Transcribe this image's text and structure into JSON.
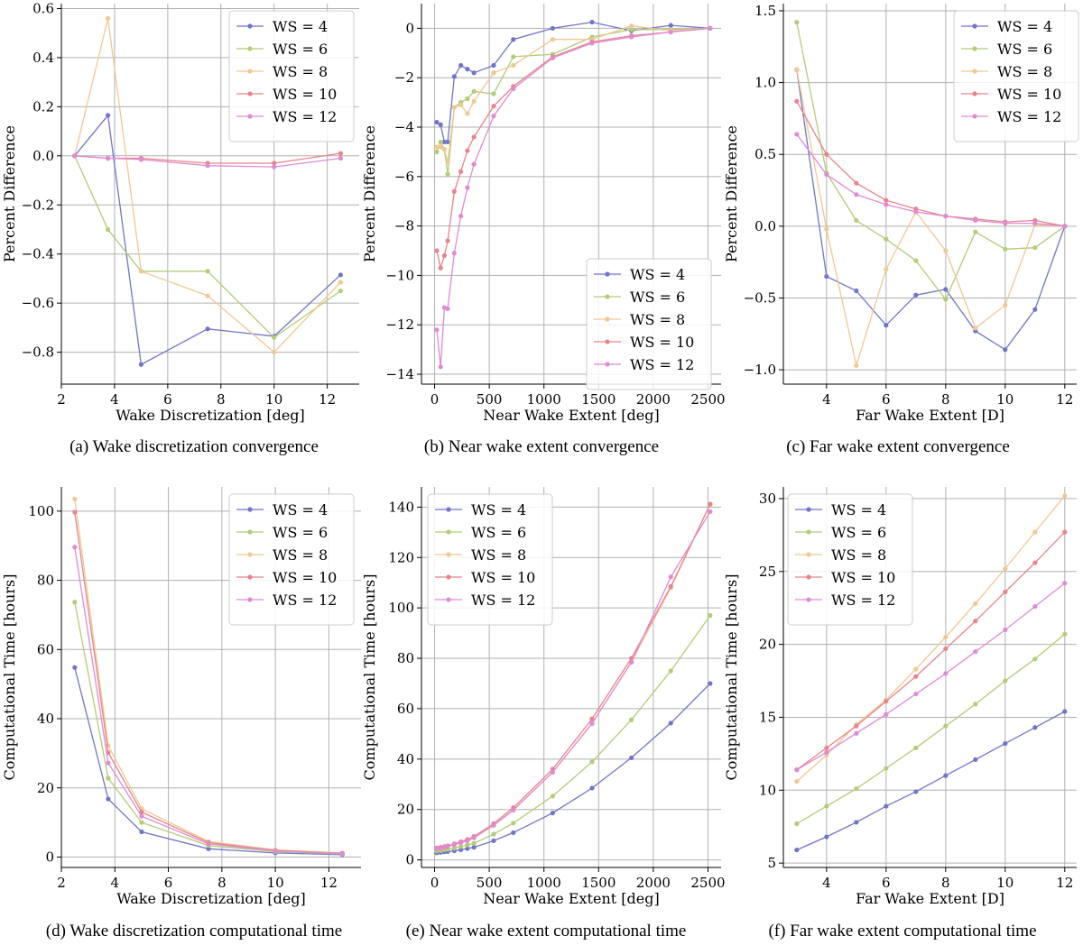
{
  "colors": {
    "WS = 4": "#7075c9",
    "WS = 6": "#b2cc78",
    "WS = 8": "#f0c892",
    "WS = 10": "#e8848b",
    "WS = 12": "#e08ad6",
    "grid": "#b0b0b0"
  },
  "captions": [
    "(a)  Wake discretization convergence",
    "(b)  Near wake extent convergence",
    "(c)  Far wake extent convergence",
    "(d)  Wake discretization computational time",
    "(e)  Near wake extent computational time",
    "(f)  Far wake extent computational time"
  ],
  "chart_data": [
    {
      "id": "a",
      "type": "line",
      "xlabel": "Wake Discretization [deg]",
      "ylabel": "Percent Difference",
      "xlim": [
        2,
        13.2
      ],
      "ylim": [
        -0.93,
        0.62
      ],
      "xticks": [
        2,
        4,
        6,
        8,
        10,
        12
      ],
      "xtick_labels": [
        "2",
        "4",
        "6",
        "8",
        "10",
        "12"
      ],
      "yticks": [
        -0.8,
        -0.6,
        -0.4,
        -0.2,
        0.0,
        0.2,
        0.4,
        0.6
      ],
      "ytick_labels": [
        "−0.8",
        "−0.6",
        "−0.4",
        "−0.2",
        "0.0",
        "0.2",
        "0.4",
        "0.6"
      ],
      "grid": true,
      "legend": "top-right",
      "series": [
        {
          "name": "WS = 4",
          "x": [
            2.5,
            3.75,
            5,
            7.5,
            10,
            12.5
          ],
          "y": [
            0.0,
            0.165,
            -0.85,
            -0.705,
            -0.735,
            -0.485
          ]
        },
        {
          "name": "WS = 6",
          "x": [
            2.5,
            3.75,
            5,
            7.5,
            10,
            12.5
          ],
          "y": [
            0.0,
            -0.3,
            -0.47,
            -0.47,
            -0.74,
            -0.55
          ]
        },
        {
          "name": "WS = 8",
          "x": [
            2.5,
            3.75,
            5,
            7.5,
            10,
            12.5
          ],
          "y": [
            0.0,
            0.56,
            -0.47,
            -0.57,
            -0.8,
            -0.515
          ]
        },
        {
          "name": "WS = 10",
          "x": [
            2.5,
            3.75,
            5,
            7.5,
            10,
            12.5
          ],
          "y": [
            0.0,
            -0.01,
            -0.01,
            -0.03,
            -0.03,
            0.01
          ]
        },
        {
          "name": "WS = 12",
          "x": [
            2.5,
            3.75,
            5,
            7.5,
            10,
            12.5
          ],
          "y": [
            0.0,
            -0.01,
            -0.015,
            -0.04,
            -0.045,
            -0.01
          ]
        }
      ]
    },
    {
      "id": "b",
      "type": "line",
      "xlabel": "Near Wake Extent [deg]",
      "ylabel": "Percent Difference",
      "xlim": [
        -120,
        2620
      ],
      "ylim": [
        -14.4,
        1.0
      ],
      "xticks": [
        0,
        500,
        1000,
        1500,
        2000,
        2500
      ],
      "xtick_labels": [
        "0",
        "500",
        "1000",
        "1500",
        "2000",
        "2500"
      ],
      "yticks": [
        -14,
        -12,
        -10,
        -8,
        -6,
        -4,
        -2,
        0
      ],
      "ytick_labels": [
        "−14",
        "−12",
        "−10",
        "−8",
        "−6",
        "−4",
        "−2",
        "0"
      ],
      "grid": true,
      "legend": "bottom-right",
      "series": [
        {
          "name": "WS = 4",
          "x": [
            20,
            55,
            90,
            120,
            180,
            240,
            300,
            360,
            540,
            720,
            1080,
            1440,
            1800,
            2160,
            2520
          ],
          "y": [
            -3.8,
            -3.9,
            -4.6,
            -4.6,
            -1.95,
            -1.5,
            -1.65,
            -1.8,
            -1.5,
            -0.45,
            0.0,
            0.25,
            -0.1,
            0.12,
            0.0
          ]
        },
        {
          "name": "WS = 6",
          "x": [
            20,
            55,
            90,
            120,
            180,
            240,
            300,
            360,
            540,
            720,
            1080,
            1440,
            1800,
            2160,
            2520
          ],
          "y": [
            -5.0,
            -4.6,
            -4.9,
            -5.9,
            -3.2,
            -3.0,
            -2.85,
            -2.55,
            -2.65,
            -1.15,
            -1.05,
            -0.35,
            -0.05,
            -0.05,
            0.0
          ]
        },
        {
          "name": "WS = 8",
          "x": [
            20,
            55,
            90,
            120,
            180,
            240,
            300,
            360,
            540,
            720,
            1080,
            1440,
            1800,
            2160,
            2520
          ],
          "y": [
            -4.8,
            -4.8,
            -4.9,
            -5.4,
            -3.2,
            -3.1,
            -3.45,
            -2.95,
            -1.8,
            -1.5,
            -0.45,
            -0.45,
            0.1,
            -0.1,
            0.0
          ]
        },
        {
          "name": "WS = 10",
          "x": [
            20,
            55,
            90,
            120,
            180,
            240,
            300,
            360,
            540,
            720,
            1080,
            1440,
            1800,
            2160,
            2520
          ],
          "y": [
            -9.0,
            -9.7,
            -9.2,
            -8.6,
            -6.6,
            -5.8,
            -4.95,
            -4.4,
            -3.15,
            -2.35,
            -1.15,
            -0.55,
            -0.3,
            -0.15,
            0.0
          ]
        },
        {
          "name": "WS = 12",
          "x": [
            20,
            55,
            90,
            120,
            180,
            240,
            300,
            360,
            540,
            720,
            1080,
            1440,
            1800,
            2160,
            2520
          ],
          "y": [
            -12.2,
            -13.7,
            -11.3,
            -11.35,
            -9.1,
            -7.6,
            -6.45,
            -5.5,
            -3.55,
            -2.45,
            -1.2,
            -0.6,
            -0.35,
            -0.15,
            0.0
          ]
        }
      ]
    },
    {
      "id": "c",
      "type": "line",
      "xlabel": "Far Wake Extent [D]",
      "ylabel": "Percent Difference",
      "xlim": [
        2.55,
        12.4
      ],
      "ylim": [
        -1.1,
        1.55
      ],
      "xticks": [
        4,
        6,
        8,
        10,
        12
      ],
      "xtick_labels": [
        "4",
        "6",
        "8",
        "10",
        "12"
      ],
      "yticks": [
        -1.0,
        -0.5,
        0.0,
        0.5,
        1.0,
        1.5
      ],
      "ytick_labels": [
        "−1.0",
        "−0.5",
        "0.0",
        "0.5",
        "1.0",
        "1.5"
      ],
      "grid": true,
      "legend": "top-right",
      "series": [
        {
          "name": "WS = 4",
          "x": [
            3,
            4,
            5,
            6,
            7,
            8,
            9,
            10,
            11,
            12
          ],
          "y": [
            1.09,
            -0.35,
            -0.45,
            -0.69,
            -0.48,
            -0.44,
            -0.73,
            -0.86,
            -0.58,
            0.0
          ]
        },
        {
          "name": "WS = 6",
          "x": [
            3,
            4,
            5,
            6,
            7,
            8,
            9,
            10,
            11,
            12
          ],
          "y": [
            1.42,
            0.37,
            0.04,
            -0.09,
            -0.24,
            -0.51,
            -0.04,
            -0.16,
            -0.15,
            0.0
          ]
        },
        {
          "name": "WS = 8",
          "x": [
            3,
            4,
            5,
            6,
            7,
            8,
            9,
            10,
            11,
            12
          ],
          "y": [
            1.09,
            -0.02,
            -0.97,
            -0.3,
            0.1,
            -0.17,
            -0.71,
            -0.55,
            0.01,
            0.0
          ]
        },
        {
          "name": "WS = 10",
          "x": [
            3,
            4,
            5,
            6,
            7,
            8,
            9,
            10,
            11,
            12
          ],
          "y": [
            0.87,
            0.5,
            0.3,
            0.18,
            0.12,
            0.07,
            0.05,
            0.03,
            0.04,
            0.0
          ]
        },
        {
          "name": "WS = 12",
          "x": [
            3,
            4,
            5,
            6,
            7,
            8,
            9,
            10,
            11,
            12
          ],
          "y": [
            0.64,
            0.36,
            0.22,
            0.15,
            0.1,
            0.07,
            0.04,
            0.02,
            0.02,
            0.0
          ]
        }
      ]
    },
    {
      "id": "d",
      "type": "line",
      "xlabel": "Wake Discretization [deg]",
      "ylabel": "Computational Time [hours]",
      "xlim": [
        2,
        13.2
      ],
      "ylim": [
        -3,
        107
      ],
      "xticks": [
        2,
        4,
        6,
        8,
        10,
        12
      ],
      "xtick_labels": [
        "2",
        "4",
        "6",
        "8",
        "10",
        "12"
      ],
      "yticks": [
        0,
        20,
        40,
        60,
        80,
        100
      ],
      "ytick_labels": [
        "0",
        "20",
        "40",
        "60",
        "80",
        "100"
      ],
      "grid": true,
      "legend": "top-right",
      "series": [
        {
          "name": "WS = 4",
          "x": [
            2.5,
            3.75,
            5,
            7.5,
            10,
            12.5
          ],
          "y": [
            54.8,
            16.8,
            7.3,
            2.4,
            1.2,
            0.7
          ]
        },
        {
          "name": "WS = 6",
          "x": [
            2.5,
            3.75,
            5,
            7.5,
            10,
            12.5
          ],
          "y": [
            73.7,
            22.8,
            10.0,
            3.3,
            1.6,
            0.9
          ]
        },
        {
          "name": "WS = 8",
          "x": [
            2.5,
            3.75,
            5,
            7.5,
            10,
            12.5
          ],
          "y": [
            103.5,
            32.3,
            14.0,
            4.5,
            2.1,
            1.2
          ]
        },
        {
          "name": "WS = 10",
          "x": [
            2.5,
            3.75,
            5,
            7.5,
            10,
            12.5
          ],
          "y": [
            99.7,
            30.2,
            13.0,
            4.2,
            1.9,
            1.1
          ]
        },
        {
          "name": "WS = 12",
          "x": [
            2.5,
            3.75,
            5,
            7.5,
            10,
            12.5
          ],
          "y": [
            89.6,
            27.2,
            11.8,
            3.8,
            1.8,
            1.0
          ]
        }
      ]
    },
    {
      "id": "e",
      "type": "line",
      "xlabel": "Near Wake Extent [deg]",
      "ylabel": "Computational Time [hours]",
      "xlim": [
        -120,
        2620
      ],
      "ylim": [
        -3,
        148
      ],
      "xticks": [
        0,
        500,
        1000,
        1500,
        2000,
        2500
      ],
      "xtick_labels": [
        "0",
        "500",
        "1000",
        "1500",
        "2000",
        "2500"
      ],
      "yticks": [
        0,
        20,
        40,
        60,
        80,
        100,
        120,
        140
      ],
      "ytick_labels": [
        "0",
        "20",
        "40",
        "60",
        "80",
        "100",
        "120",
        "140"
      ],
      "grid": true,
      "legend": "top-left",
      "series": [
        {
          "name": "WS = 4",
          "x": [
            20,
            55,
            90,
            120,
            180,
            240,
            300,
            360,
            540,
            720,
            1080,
            1440,
            1800,
            2160,
            2520
          ],
          "y": [
            2.8,
            3.0,
            3.2,
            3.3,
            3.6,
            4.0,
            4.5,
            5.0,
            7.6,
            10.8,
            18.6,
            28.5,
            40.5,
            54.3,
            70.0
          ]
        },
        {
          "name": "WS = 6",
          "x": [
            20,
            55,
            90,
            120,
            180,
            240,
            300,
            360,
            540,
            720,
            1080,
            1440,
            1800,
            2160,
            2520
          ],
          "y": [
            3.5,
            3.7,
            4.0,
            4.2,
            4.7,
            5.3,
            5.9,
            6.6,
            10.2,
            14.6,
            25.3,
            38.9,
            55.6,
            75.0,
            97.0
          ]
        },
        {
          "name": "WS = 8",
          "x": [
            20,
            55,
            90,
            120,
            180,
            240,
            300,
            360,
            540,
            720,
            1080,
            1440,
            1800,
            2160,
            2520
          ],
          "y": [
            4.5,
            4.8,
            5.1,
            5.4,
            6.0,
            6.9,
            7.7,
            8.8,
            13.6,
            19.7,
            34.8,
            54.0,
            78.6,
            108.0,
            141.0
          ]
        },
        {
          "name": "WS = 10",
          "x": [
            20,
            55,
            90,
            120,
            180,
            240,
            300,
            360,
            540,
            720,
            1080,
            1440,
            1800,
            2160,
            2520
          ],
          "y": [
            4.8,
            5.0,
            5.3,
            5.6,
            6.4,
            7.2,
            8.1,
            9.3,
            14.4,
            20.7,
            36.0,
            56.0,
            80.0,
            108.5,
            141.2
          ]
        },
        {
          "name": "WS = 12",
          "x": [
            20,
            55,
            90,
            120,
            180,
            240,
            300,
            360,
            540,
            720,
            1080,
            1440,
            1800,
            2160,
            2520
          ],
          "y": [
            4.4,
            4.7,
            5.0,
            5.3,
            6.0,
            6.8,
            7.6,
            8.8,
            13.8,
            19.8,
            34.8,
            54.2,
            78.4,
            112.3,
            138.2
          ]
        }
      ]
    },
    {
      "id": "f",
      "type": "line",
      "xlabel": "Far Wake Extent [D]",
      "ylabel": "Computational Time [hours]",
      "xlim": [
        2.55,
        12.4
      ],
      "ylim": [
        4.7,
        30.8
      ],
      "xticks": [
        4,
        6,
        8,
        10,
        12
      ],
      "xtick_labels": [
        "4",
        "6",
        "8",
        "10",
        "12"
      ],
      "yticks": [
        5,
        10,
        15,
        20,
        25,
        30
      ],
      "ytick_labels": [
        "5",
        "10",
        "15",
        "20",
        "25",
        "30"
      ],
      "grid": true,
      "legend": "top-left",
      "series": [
        {
          "name": "WS = 4",
          "x": [
            3,
            4,
            5,
            6,
            7,
            8,
            9,
            10,
            11,
            12
          ],
          "y": [
            5.9,
            6.8,
            7.8,
            8.9,
            9.9,
            11.0,
            12.1,
            13.2,
            14.3,
            15.4
          ]
        },
        {
          "name": "WS = 6",
          "x": [
            3,
            4,
            5,
            6,
            7,
            8,
            9,
            10,
            11,
            12
          ],
          "y": [
            7.7,
            8.9,
            10.1,
            11.5,
            12.9,
            14.4,
            15.9,
            17.5,
            19.0,
            20.7
          ]
        },
        {
          "name": "WS = 8",
          "x": [
            3,
            4,
            5,
            6,
            7,
            8,
            9,
            10,
            11,
            12
          ],
          "y": [
            10.6,
            12.4,
            14.5,
            16.2,
            18.3,
            20.5,
            22.8,
            25.2,
            27.7,
            30.2
          ]
        },
        {
          "name": "WS = 10",
          "x": [
            3,
            4,
            5,
            6,
            7,
            8,
            9,
            10,
            11,
            12
          ],
          "y": [
            11.4,
            12.9,
            14.4,
            16.1,
            17.8,
            19.7,
            21.6,
            23.6,
            25.6,
            27.7
          ]
        },
        {
          "name": "WS = 12",
          "x": [
            3,
            4,
            5,
            6,
            7,
            8,
            9,
            10,
            11,
            12
          ],
          "y": [
            11.4,
            12.6,
            13.9,
            15.2,
            16.6,
            18.0,
            19.5,
            21.0,
            22.6,
            24.2
          ]
        }
      ]
    }
  ]
}
